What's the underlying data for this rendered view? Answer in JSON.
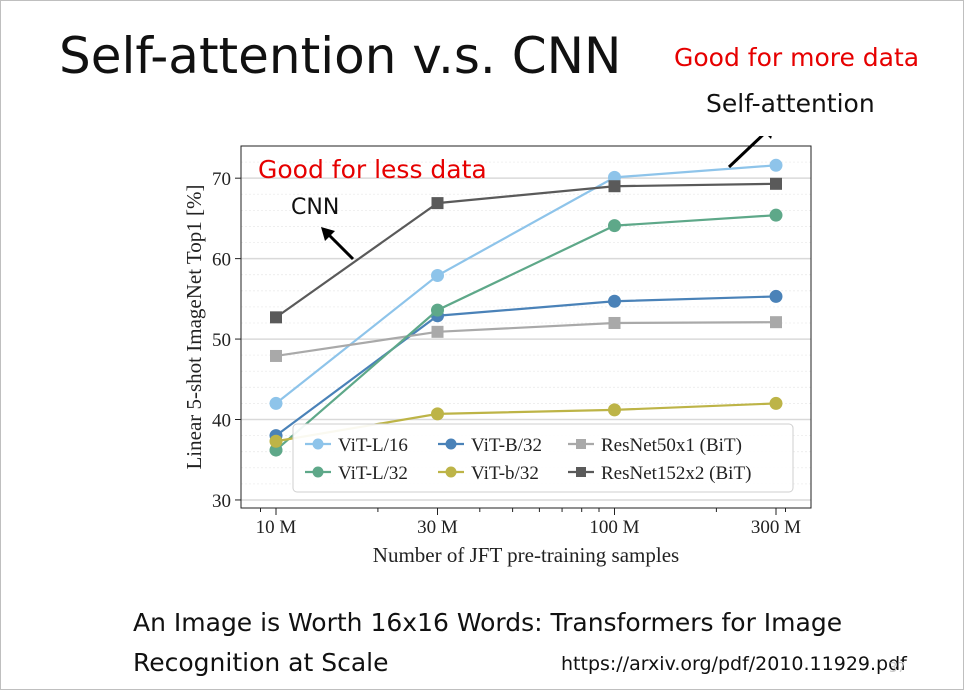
{
  "slide": {
    "title": "Self-attention v.s. CNN",
    "note_more": "Good for more data",
    "note_self": "Self-attention",
    "note_less": "Good for less data",
    "note_cnn": "CNN",
    "caption_line1": "An Image is Worth 16x16 Words: Transformers for Image",
    "caption_line2": "Recognition at Scale",
    "url": "https://arxiv.org/pdf/2010.11929.pdf",
    "page_number": "37",
    "accent_red": "#e60000"
  },
  "chart_data": {
    "type": "line",
    "title": "",
    "xlabel": "Number of JFT pre-training samples",
    "ylabel": "Linear 5-shot ImageNet Top1 [%]",
    "x_scale": "log",
    "categories": [
      "10 M",
      "30 M",
      "100 M",
      "300 M"
    ],
    "ylim": [
      29,
      74
    ],
    "yticks": [
      30,
      40,
      50,
      60,
      70
    ],
    "grid": true,
    "legend_position": "bottom-right",
    "series": [
      {
        "name": "ViT-L/16",
        "color": "#8ec4ea",
        "marker": "circle",
        "values": [
          42,
          57.9,
          70.1,
          71.6
        ]
      },
      {
        "name": "ViT-B/32",
        "color": "#4a82b8",
        "marker": "circle",
        "values": [
          38,
          52.9,
          54.7,
          55.3
        ]
      },
      {
        "name": "ResNet50x1 (BiT)",
        "color": "#a9a9a9",
        "marker": "square",
        "values": [
          47.9,
          50.9,
          52,
          52.1
        ]
      },
      {
        "name": "ViT-L/32",
        "color": "#5ea889",
        "marker": "circle",
        "values": [
          36.2,
          53.6,
          64.1,
          65.4
        ]
      },
      {
        "name": "ViT-b/32",
        "color": "#bdb447",
        "marker": "circle",
        "values": [
          37.3,
          40.7,
          41.2,
          42
        ]
      },
      {
        "name": "ResNet152x2 (BiT)",
        "color": "#5a5a5a",
        "marker": "square",
        "values": [
          52.7,
          66.9,
          69,
          69.3
        ]
      }
    ]
  }
}
